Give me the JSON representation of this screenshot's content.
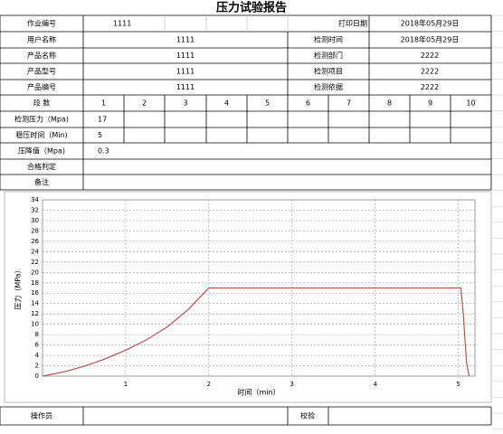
{
  "title": "压力试验报告",
  "header": {
    "job_no_label": "作业编号",
    "job_no": "1111",
    "print_date_label": "打印日期",
    "print_date": "2018年05月29日"
  },
  "fields": [
    {
      "label": "用户名称",
      "value": "1111",
      "label2": "检测时间",
      "value2": "2018年05月29日"
    },
    {
      "label": "产品名称",
      "value": "1111",
      "label2": "检测部门",
      "value2": "2222"
    },
    {
      "label": "产品型号",
      "value": "1111",
      "label2": "检测项目",
      "value2": "2222"
    },
    {
      "label": "产品编号",
      "value": "1111",
      "label2": "检测依据",
      "value2": "2222"
    }
  ],
  "segments": {
    "label": "段 数",
    "numbers": [
      1,
      2,
      3,
      4,
      5,
      6,
      7,
      8,
      9,
      10
    ]
  },
  "params": [
    {
      "label": "检测压力（Mpa)",
      "value": "17"
    },
    {
      "label": "稳压时间（Min)",
      "value": "5"
    },
    {
      "label": "压降值（Mpa)",
      "value": "0.3"
    }
  ],
  "judgement_label": "合格判定",
  "remarks_label": "备注",
  "chart_data": {
    "type": "line",
    "x_label": "时间（min）",
    "y_label": "压力（MPa）",
    "xlim": [
      0,
      5.2
    ],
    "ylim": [
      0,
      34
    ],
    "xticks": [
      1,
      2,
      3,
      4,
      5
    ],
    "yticks": [
      0,
      2,
      4,
      6,
      8,
      10,
      12,
      14,
      16,
      18,
      20,
      22,
      24,
      26,
      28,
      30,
      32,
      34
    ],
    "grid": true,
    "series": [
      {
        "name": "压力",
        "color": "#c0504d",
        "x": [
          0,
          0.25,
          0.5,
          0.75,
          1,
          1.25,
          1.5,
          1.75,
          2,
          3,
          4,
          5.03,
          5.06,
          5.08,
          5.1,
          5.13
        ],
        "values": [
          0,
          0.8,
          1.9,
          3.3,
          5,
          7,
          9.5,
          12.8,
          17,
          17,
          17,
          17,
          12,
          7,
          2.5,
          0
        ]
      }
    ]
  },
  "footer": {
    "operator_label": "操作员",
    "checker_label": "校验"
  }
}
